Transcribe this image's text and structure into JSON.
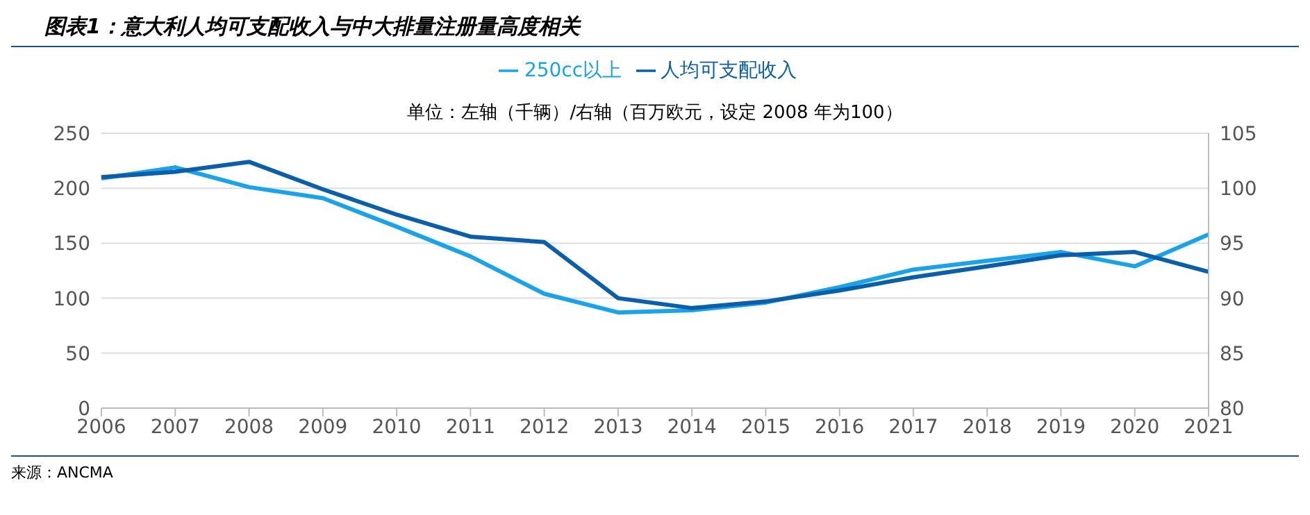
{
  "chart_data": {
    "type": "line",
    "title": "图表1：意大利人均可支配收入与中大排量注册量高度相关",
    "subtitle": "单位：左轴（千辆）/右轴（百万欧元，设定 2008 年为100）",
    "categories": [
      "2006",
      "2007",
      "2008",
      "2009",
      "2010",
      "2011",
      "2012",
      "2013",
      "2014",
      "2015",
      "2016",
      "2017",
      "2018",
      "2019",
      "2020",
      "2021"
    ],
    "series": [
      {
        "name": "250cc以上",
        "color": "#1aa3e8",
        "values": [
          209,
          219,
          201,
          191,
          165,
          138,
          104,
          87,
          89,
          96,
          110,
          126,
          134,
          142,
          129,
          158
        ]
      },
      {
        "name": "人均可支配收入",
        "color": "#0a5fa8",
        "axis": "y2",
        "values": [
          101,
          101.5,
          102.4,
          99.9,
          97.6,
          95.6,
          95.1,
          90,
          89.1,
          89.7,
          90.7,
          91.9,
          92.9,
          93.9,
          94.2,
          92.4
        ]
      }
    ],
    "ylim": [
      0,
      250
    ],
    "yticks": [
      0,
      50,
      100,
      150,
      200,
      250
    ],
    "y2lim": [
      80,
      105
    ],
    "y2ticks": [
      80,
      85,
      90,
      95,
      100,
      105
    ],
    "grid": "y",
    "legend": "top",
    "marker": "none",
    "line_style": "solid",
    "annotations": [
      "来源：ANCMA"
    ]
  }
}
